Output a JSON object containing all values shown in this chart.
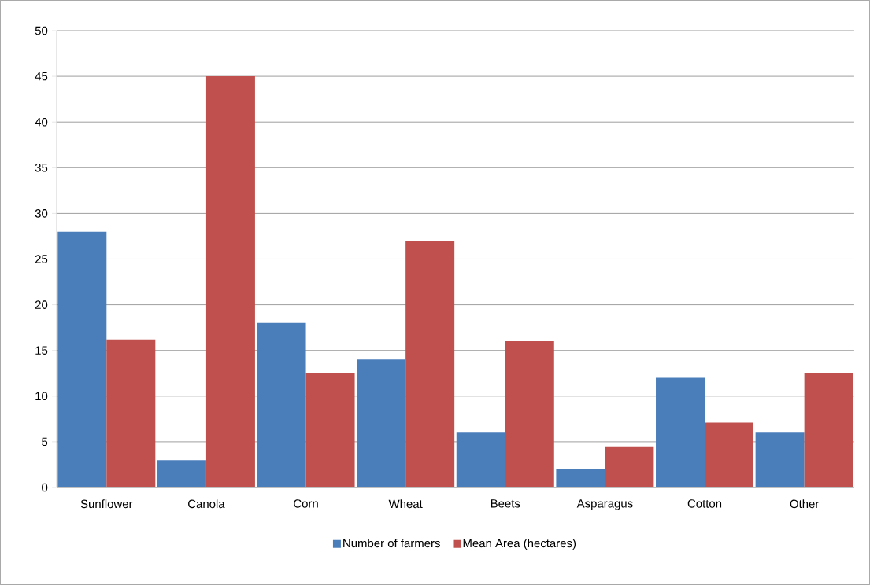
{
  "chart_data": {
    "type": "bar",
    "categories": [
      "Sunflower",
      "Canola",
      "Corn",
      "Wheat",
      "Beets",
      "Asparagus",
      "Cotton",
      "Other"
    ],
    "series": [
      {
        "name": "Number of farmers",
        "color": "#4a7ebb",
        "values": [
          28,
          3,
          18,
          14,
          6,
          2,
          12,
          6
        ]
      },
      {
        "name": "Mean Area (hectares)",
        "color": "#c0504d",
        "values": [
          16.2,
          45,
          12.5,
          27,
          16,
          4.5,
          7.1,
          12.5
        ]
      }
    ],
    "ylim": [
      0,
      50
    ],
    "yticks": [
      0,
      5,
      10,
      15,
      20,
      25,
      30,
      35,
      40,
      45,
      50
    ],
    "grid": "y",
    "legend": "bottom"
  }
}
